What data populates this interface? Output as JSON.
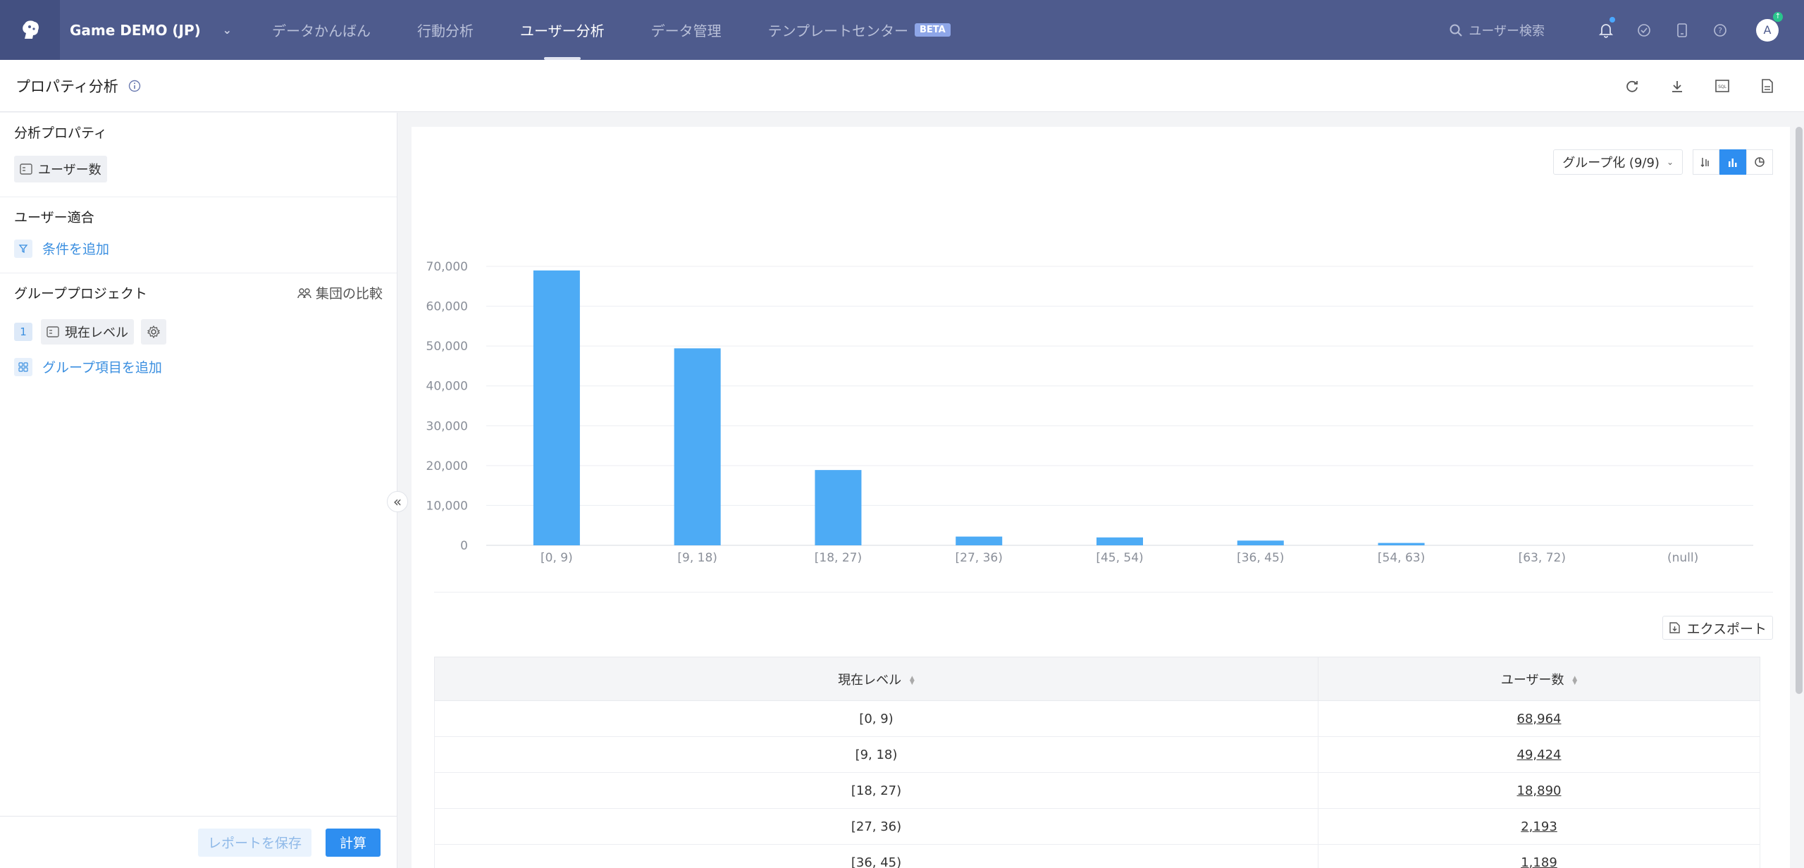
{
  "topbar": {
    "project": "Game DEMO (JP)",
    "tabs": [
      {
        "label": "データかんばん",
        "active": false
      },
      {
        "label": "行動分析",
        "active": false
      },
      {
        "label": "ユーザー分析",
        "active": true
      },
      {
        "label": "データ管理",
        "active": false
      },
      {
        "label": "テンプレートセンター",
        "active": false,
        "badge": "BETA"
      }
    ],
    "search_placeholder": "ユーザー検索",
    "avatar_initial": "A",
    "avatar_badge": "↑"
  },
  "page": {
    "title": "プロパティ分析"
  },
  "left": {
    "prop_section_title": "分析プロパティ",
    "prop_chip": "ユーザー数",
    "filter_section_title": "ユーザー適合",
    "filter_add": "条件を追加",
    "group_section_title": "グループプロジェクト",
    "compare_label": "集団の比較",
    "group_num": "1",
    "group_chip": "現在レベル",
    "group_add": "グループ項目を追加",
    "save_label": "レポートを保存",
    "calc_label": "計算"
  },
  "main": {
    "group_select": "グループ化 (9/9)",
    "export_label": "エクスポート",
    "table": {
      "col1": "現在レベル",
      "col2": "ユーザー数",
      "rows": [
        {
          "label": "[0, 9)",
          "value": "68,964"
        },
        {
          "label": "[9, 18)",
          "value": "49,424"
        },
        {
          "label": "[18, 27)",
          "value": "18,890"
        },
        {
          "label": "[27, 36)",
          "value": "2,193"
        },
        {
          "label": "[36, 45)",
          "value": "1,189"
        }
      ]
    }
  },
  "colors": {
    "nav_bg": "#4e5b8d",
    "bar": "#4dabf5",
    "accent": "#2e8ef0"
  },
  "chart_data": {
    "type": "bar",
    "categories": [
      "[0, 9)",
      "[9, 18)",
      "[18, 27)",
      "[27, 36)",
      "[45, 54)",
      "[36, 45)",
      "[54, 63)",
      "[63, 72)",
      "(null)"
    ],
    "values": [
      68964,
      49424,
      18890,
      2193,
      1980,
      1189,
      600,
      0,
      0
    ],
    "ylim": [
      0,
      70000
    ],
    "yticks": [
      "0",
      "10,000",
      "20,000",
      "30,000",
      "40,000",
      "50,000",
      "60,000",
      "70,000"
    ],
    "grid": true
  }
}
